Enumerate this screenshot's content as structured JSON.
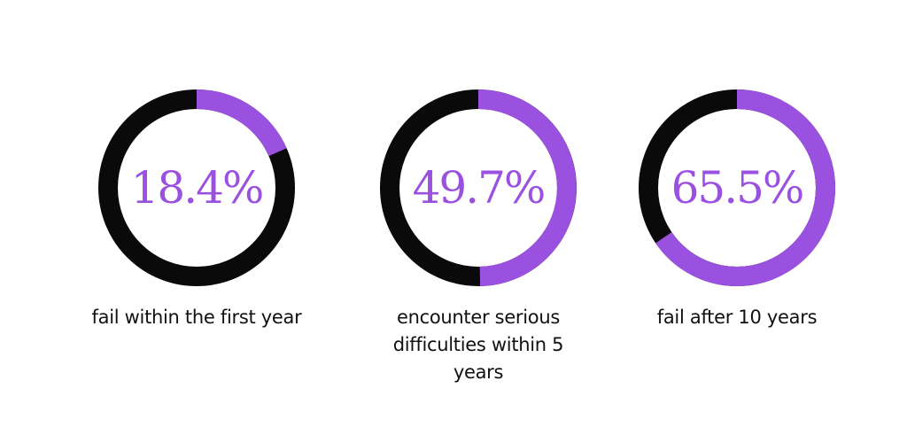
{
  "colors": {
    "accent": "#9b51e0",
    "track": "#0a0a0a",
    "text": "#111111"
  },
  "chart_data": [
    {
      "type": "pie",
      "variant": "donut",
      "value": 18.4,
      "value_label": "18.4%",
      "caption": "fail within the first year"
    },
    {
      "type": "pie",
      "variant": "donut",
      "value": 49.7,
      "value_label": "49.7%",
      "caption": "encounter serious difficulties within 5 years"
    },
    {
      "type": "pie",
      "variant": "donut",
      "value": 65.5,
      "value_label": "65.5%",
      "caption": "fail after 10 years"
    }
  ]
}
